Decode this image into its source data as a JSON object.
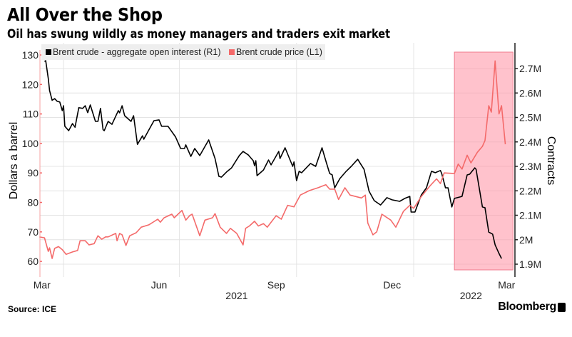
{
  "header": {
    "title": "All Over the Shop",
    "subtitle": "Oil has swung wildly as money managers and traders exit market"
  },
  "footer": {
    "source": "Source: ICE",
    "brand": "Bloomberg"
  },
  "chart_data": {
    "type": "line",
    "title": "All Over the Shop",
    "subtitle": "Oil has swung wildly as money managers and traders exit market",
    "ylabel_left": "Dollars a barrel",
    "ylabel_right": "Contracts",
    "left_axis": {
      "range": [
        55,
        131
      ],
      "ticks": [
        60,
        70,
        80,
        90,
        100,
        110,
        120,
        130
      ],
      "tick_labels": [
        "60",
        "70",
        "80",
        "90",
        "100",
        "110",
        "120",
        "130"
      ]
    },
    "right_axis": {
      "range": [
        1.86,
        2.8
      ],
      "unit": "M",
      "ticks": [
        1.9,
        2.0,
        2.1,
        2.2,
        2.3,
        2.4,
        2.5,
        2.6,
        2.7
      ],
      "tick_labels": [
        "1.9M",
        "2M",
        "2.1M",
        "2.2M",
        "2.3M",
        "2.4M",
        "2.5M",
        "2.6M",
        "2.7M"
      ]
    },
    "x_axis": {
      "range": [
        "2021-03-12",
        "2022-03-20"
      ],
      "month_labels": [
        {
          "label": "Mar",
          "date": "2021-03-15"
        },
        {
          "label": "Jun",
          "date": "2021-06-15"
        },
        {
          "label": "Sep",
          "date": "2021-09-15"
        },
        {
          "label": "Dec",
          "date": "2021-12-15"
        },
        {
          "label": "Mar",
          "date": "2022-03-15"
        }
      ],
      "year_labels": [
        {
          "label": "2021",
          "date": "2021-08-15"
        },
        {
          "label": "2022",
          "date": "2022-02-15"
        }
      ],
      "gridlines": [
        "2021-04-01",
        "2021-07-01",
        "2021-10-01",
        "2022-01-01"
      ]
    },
    "grid": true,
    "legend_position": "top-left",
    "highlight": {
      "start": "2022-02-02",
      "end": "2022-03-20",
      "color": "#ff8fa3"
    },
    "series": [
      {
        "name": "Brent crude - aggregate open interest (R1)",
        "axis": "right",
        "color": "#000000",
        "unit": "million contracts",
        "points": [
          [
            "2021-03-17",
            2.729
          ],
          [
            "2021-03-18",
            2.732
          ],
          [
            "2021-03-20",
            2.659
          ],
          [
            "2021-03-21",
            2.61
          ],
          [
            "2021-03-23",
            2.57
          ],
          [
            "2021-03-25",
            2.577
          ],
          [
            "2021-03-27",
            2.566
          ],
          [
            "2021-03-29",
            2.563
          ],
          [
            "2021-03-31",
            2.528
          ],
          [
            "2021-04-01",
            2.548
          ],
          [
            "2021-04-02",
            2.464
          ],
          [
            "2021-04-05",
            2.446
          ],
          [
            "2021-04-08",
            2.475
          ],
          [
            "2021-04-10",
            2.46
          ],
          [
            "2021-04-13",
            2.54
          ],
          [
            "2021-04-16",
            2.537
          ],
          [
            "2021-04-18",
            2.548
          ],
          [
            "2021-04-20",
            2.52
          ],
          [
            "2021-04-22",
            2.551
          ],
          [
            "2021-04-26",
            2.484
          ],
          [
            "2021-04-28",
            2.484
          ],
          [
            "2021-04-30",
            2.537
          ],
          [
            "2021-05-02",
            2.45
          ],
          [
            "2021-05-03",
            2.446
          ],
          [
            "2021-05-06",
            2.484
          ],
          [
            "2021-05-09",
            2.472
          ],
          [
            "2021-05-14",
            2.528
          ],
          [
            "2021-05-15",
            2.519
          ],
          [
            "2021-05-17",
            2.548
          ],
          [
            "2021-05-19",
            2.507
          ],
          [
            "2021-05-24",
            2.484
          ],
          [
            "2021-05-26",
            2.507
          ],
          [
            "2021-05-29",
            2.39
          ],
          [
            "2021-06-02",
            2.425
          ],
          [
            "2021-06-03",
            2.411
          ],
          [
            "2021-06-07",
            2.449
          ],
          [
            "2021-06-11",
            2.487
          ],
          [
            "2021-06-15",
            2.49
          ],
          [
            "2021-06-17",
            2.464
          ],
          [
            "2021-06-22",
            2.464
          ],
          [
            "2021-06-28",
            2.42
          ],
          [
            "2021-07-02",
            2.373
          ],
          [
            "2021-07-05",
            2.373
          ],
          [
            "2021-07-06",
            2.388
          ],
          [
            "2021-07-10",
            2.341
          ],
          [
            "2021-07-13",
            2.373
          ],
          [
            "2021-07-17",
            2.344
          ],
          [
            "2021-07-24",
            2.408
          ],
          [
            "2021-07-29",
            2.332
          ],
          [
            "2021-08-01",
            2.259
          ],
          [
            "2021-08-03",
            2.256
          ],
          [
            "2021-08-07",
            2.277
          ],
          [
            "2021-08-11",
            2.294
          ],
          [
            "2021-08-17",
            2.344
          ],
          [
            "2021-08-20",
            2.361
          ],
          [
            "2021-08-24",
            2.347
          ],
          [
            "2021-08-28",
            2.323
          ],
          [
            "2021-08-29",
            2.303
          ],
          [
            "2021-08-30",
            2.323
          ],
          [
            "2021-08-31",
            2.262
          ],
          [
            "2021-09-05",
            2.285
          ],
          [
            "2021-09-09",
            2.326
          ],
          [
            "2021-09-11",
            2.306
          ],
          [
            "2021-09-17",
            2.361
          ],
          [
            "2021-09-18",
            2.332
          ],
          [
            "2021-09-22",
            2.376
          ],
          [
            "2021-09-28",
            2.3
          ],
          [
            "2021-09-29",
            2.318
          ],
          [
            "2021-10-01",
            2.242
          ],
          [
            "2021-10-03",
            2.28
          ],
          [
            "2021-10-05",
            2.274
          ],
          [
            "2021-10-12",
            2.312
          ],
          [
            "2021-10-16",
            2.3
          ],
          [
            "2021-10-21",
            2.376
          ],
          [
            "2021-10-24",
            2.323
          ],
          [
            "2021-10-27",
            2.271
          ],
          [
            "2021-10-29",
            2.265
          ],
          [
            "2021-10-31",
            2.212
          ],
          [
            "2021-11-04",
            2.25
          ],
          [
            "2021-11-09",
            2.28
          ],
          [
            "2021-11-13",
            2.3
          ],
          [
            "2021-11-18",
            2.329
          ],
          [
            "2021-11-23",
            2.288
          ],
          [
            "2021-11-27",
            2.198
          ],
          [
            "2021-12-01",
            2.16
          ],
          [
            "2021-12-06",
            2.142
          ],
          [
            "2021-12-11",
            2.172
          ],
          [
            "2021-12-15",
            2.163
          ],
          [
            "2021-12-21",
            2.157
          ],
          [
            "2021-12-25",
            2.169
          ],
          [
            "2021-12-29",
            2.177
          ],
          [
            "2021-12-30",
            2.113
          ],
          [
            "2022-01-02",
            2.113
          ],
          [
            "2022-01-07",
            2.183
          ],
          [
            "2022-01-11",
            2.212
          ],
          [
            "2022-01-15",
            2.28
          ],
          [
            "2022-01-18",
            2.274
          ],
          [
            "2022-01-22",
            2.283
          ],
          [
            "2022-01-23",
            2.271
          ],
          [
            "2022-01-26",
            2.212
          ],
          [
            "2022-01-28",
            2.212
          ],
          [
            "2022-01-31",
            2.134
          ],
          [
            "2022-02-02",
            2.169
          ],
          [
            "2022-02-08",
            2.177
          ],
          [
            "2022-02-12",
            2.265
          ],
          [
            "2022-02-14",
            2.268
          ],
          [
            "2022-02-18",
            2.294
          ],
          [
            "2022-02-19",
            2.288
          ],
          [
            "2022-02-24",
            2.134
          ],
          [
            "2022-02-26",
            2.131
          ],
          [
            "2022-03-01",
            2.031
          ],
          [
            "2022-03-04",
            2.023
          ],
          [
            "2022-03-06",
            1.979
          ],
          [
            "2022-03-09",
            1.944
          ],
          [
            "2022-03-11",
            1.923
          ]
        ]
      },
      {
        "name": "Brent crude price (L1)",
        "axis": "left",
        "color": "#f46a6a",
        "unit": "USD per barrel",
        "points": [
          [
            "2021-03-13",
            68.3
          ],
          [
            "2021-03-17",
            68
          ],
          [
            "2021-03-20",
            63.4
          ],
          [
            "2021-03-21",
            64.6
          ],
          [
            "2021-03-23",
            61
          ],
          [
            "2021-03-25",
            64.4
          ],
          [
            "2021-03-28",
            65
          ],
          [
            "2021-03-31",
            64
          ],
          [
            "2021-04-03",
            62.4
          ],
          [
            "2021-04-08",
            63.2
          ],
          [
            "2021-04-12",
            63.7
          ],
          [
            "2021-04-14",
            67
          ],
          [
            "2021-04-18",
            67
          ],
          [
            "2021-04-21",
            65.6
          ],
          [
            "2021-04-25",
            66
          ],
          [
            "2021-04-28",
            68.7
          ],
          [
            "2021-05-01",
            67.5
          ],
          [
            "2021-05-04",
            68.3
          ],
          [
            "2021-05-06",
            68.3
          ],
          [
            "2021-05-12",
            69.5
          ],
          [
            "2021-05-13",
            67
          ],
          [
            "2021-05-15",
            69.5
          ],
          [
            "2021-05-17",
            69
          ],
          [
            "2021-05-20",
            65.4
          ],
          [
            "2021-05-23",
            68.7
          ],
          [
            "2021-05-28",
            69.7
          ],
          [
            "2021-06-01",
            71.6
          ],
          [
            "2021-06-07",
            72.4
          ],
          [
            "2021-06-14",
            74.3
          ],
          [
            "2021-06-16",
            73.3
          ],
          [
            "2021-06-19",
            74.8
          ],
          [
            "2021-06-25",
            76
          ],
          [
            "2021-06-27",
            74.8
          ],
          [
            "2021-07-03",
            77.3
          ],
          [
            "2021-07-06",
            74
          ],
          [
            "2021-07-09",
            75.5
          ],
          [
            "2021-07-11",
            76
          ],
          [
            "2021-07-17",
            68.7
          ],
          [
            "2021-07-21",
            74
          ],
          [
            "2021-07-27",
            74.8
          ],
          [
            "2021-07-29",
            76.2
          ],
          [
            "2021-08-02",
            71.6
          ],
          [
            "2021-08-07",
            69.5
          ],
          [
            "2021-08-10",
            71.2
          ],
          [
            "2021-08-15",
            69.5
          ],
          [
            "2021-08-20",
            65.6
          ],
          [
            "2021-08-22",
            71.2
          ],
          [
            "2021-08-25",
            72
          ],
          [
            "2021-08-29",
            73.6
          ],
          [
            "2021-09-01",
            72
          ],
          [
            "2021-09-05",
            72.8
          ],
          [
            "2021-09-08",
            71.6
          ],
          [
            "2021-09-15",
            75.5
          ],
          [
            "2021-09-19",
            74.3
          ],
          [
            "2021-09-24",
            79
          ],
          [
            "2021-09-29",
            78.5
          ],
          [
            "2021-10-04",
            82.5
          ],
          [
            "2021-10-11",
            84
          ],
          [
            "2021-10-18",
            85
          ],
          [
            "2021-10-24",
            86
          ],
          [
            "2021-10-27",
            84.5
          ],
          [
            "2021-10-31",
            84.5
          ],
          [
            "2021-11-03",
            81
          ],
          [
            "2021-11-08",
            85
          ],
          [
            "2021-11-12",
            82.5
          ],
          [
            "2021-11-21",
            81.5
          ],
          [
            "2021-11-24",
            82.5
          ],
          [
            "2021-11-26",
            73
          ],
          [
            "2021-11-30",
            69
          ],
          [
            "2021-12-03",
            70
          ],
          [
            "2021-12-07",
            76
          ],
          [
            "2021-12-14",
            74
          ],
          [
            "2021-12-18",
            71.6
          ],
          [
            "2021-12-24",
            77
          ],
          [
            "2021-12-29",
            79
          ],
          [
            "2022-01-01",
            78
          ],
          [
            "2022-01-07",
            82
          ],
          [
            "2022-01-14",
            85.7
          ],
          [
            "2022-01-19",
            88
          ],
          [
            "2022-01-22",
            86.4
          ],
          [
            "2022-01-25",
            90
          ],
          [
            "2022-02-02",
            89.8
          ],
          [
            "2022-02-05",
            93
          ],
          [
            "2022-02-08",
            91.3
          ],
          [
            "2022-02-12",
            96
          ],
          [
            "2022-02-15",
            93.4
          ],
          [
            "2022-02-20",
            97
          ],
          [
            "2022-02-24",
            99
          ],
          [
            "2022-02-26",
            101
          ],
          [
            "2022-03-01",
            112.8
          ],
          [
            "2022-03-03",
            110.6
          ],
          [
            "2022-03-06",
            128
          ],
          [
            "2022-03-09",
            110
          ],
          [
            "2022-03-11",
            112.8
          ],
          [
            "2022-03-14",
            99.7
          ]
        ]
      }
    ]
  }
}
